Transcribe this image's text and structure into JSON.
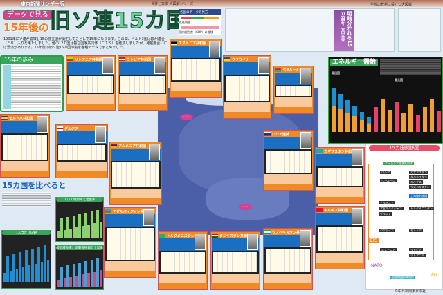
{
  "header": {
    "paper": "東京新聞サンデー版",
    "series": "世界と日本 大図解シリーズ",
    "series_right": "学校の教材に役立つ大図解"
  },
  "title": {
    "tag1": "データで見る",
    "tag2": "15年後の",
    "main": "旧ソ連15カ国"
  },
  "lead": "1991年にソ連が崩壊し15の独立国が誕生してことしで15年になります。この間、バルト3国は欧州連合（ＥＵ）入りを果たしました。他の12カ国は独立国家共同体（ＣＩＳ）を結成しましたが、発展度合いには濃淡があります。15年後の旧ソ連15カ国の姿を各種データでまとめました。",
  "legend": {
    "title": "各国のデータの見方",
    "row1": "在任期間",
    "row2": "国内総生産（GDP）の推移"
  },
  "article": {
    "headline": "明暗分かれる15の国々",
    "byline": "岩田 信幸"
  },
  "history": {
    "title": "15年の歩み"
  },
  "compare": {
    "title": "15カ国を比べると",
    "chart_gnp": "1人当たりGNP",
    "chart_pop": "人口の増加率と出生率",
    "chart_growth": "経済成長率と消費者物価の上昇率"
  },
  "energy": {
    "title": "エネルギー需給",
    "export": "輸出国",
    "import": "輸入国"
  },
  "relations": {
    "title": "15カ国関係図",
    "eurasia": "ユーラシア経済共同体",
    "shanghai": "上海協力機構",
    "guam": "民主的選択共同体",
    "cis": "CIS",
    "nato": "NATO",
    "eu": "EU",
    "countries": [
      "ロシア",
      "ベラルーシ",
      "カザフスタン",
      "タジキスタン",
      "キルギス",
      "ウズベキスタン",
      "アルメニア",
      "アゼルバイジャン",
      "グルジア",
      "ウクライナ",
      "モルドバ",
      "トルクメニスタン",
      "エストニア",
      "ラトビア",
      "リトアニア"
    ]
  },
  "countries": [
    {
      "name": "リトアニア共和国",
      "flag": [
        "#f3c400",
        "#2a8a3a",
        "#c1272d"
      ]
    },
    {
      "name": "ラトビア共和国",
      "flag": [
        "#9e3039",
        "#fff",
        "#9e3039"
      ]
    },
    {
      "name": "エストニア共和国",
      "flag": [
        "#0072ce",
        "#000",
        "#fff"
      ]
    },
    {
      "name": "ウクライナ",
      "flag": [
        "#0057b7",
        "#ffd700",
        "#ffd700"
      ]
    },
    {
      "name": "ベラルーシ共和国",
      "flag": [
        "#c8313e",
        "#c8313e",
        "#4aa657"
      ]
    },
    {
      "name": "モルドバ共和国",
      "flag": [
        "#0046ae",
        "#ffd200",
        "#cc092f"
      ]
    },
    {
      "name": "グルジア",
      "flag": [
        "#fff",
        "#e00",
        "#fff"
      ]
    },
    {
      "name": "アルメニア共和国",
      "flag": [
        "#d90012",
        "#0033a0",
        "#f2a800"
      ]
    },
    {
      "name": "ロシア連邦",
      "flag": [
        "#fff",
        "#0039a6",
        "#d52b1e"
      ]
    },
    {
      "name": "カザフスタン共和国",
      "flag": [
        "#00afca",
        "#00afca",
        "#00afca"
      ]
    },
    {
      "name": "キルギス共和国",
      "flag": [
        "#e8112d",
        "#e8112d",
        "#e8112d"
      ]
    },
    {
      "name": "アゼルバイジャン共和国",
      "flag": [
        "#00b5e2",
        "#ef3340",
        "#509e2f"
      ]
    },
    {
      "name": "トルクメニスタン",
      "flag": [
        "#28ae66",
        "#28ae66",
        "#28ae66"
      ]
    },
    {
      "name": "タジキスタン共和国",
      "flag": [
        "#cc0000",
        "#fff",
        "#006600"
      ]
    },
    {
      "name": "ウズベキスタン共和国",
      "flag": [
        "#1eb53a",
        "#fff",
        "#0099b5"
      ]
    }
  ],
  "copyright": "©中日新聞東京本社"
}
